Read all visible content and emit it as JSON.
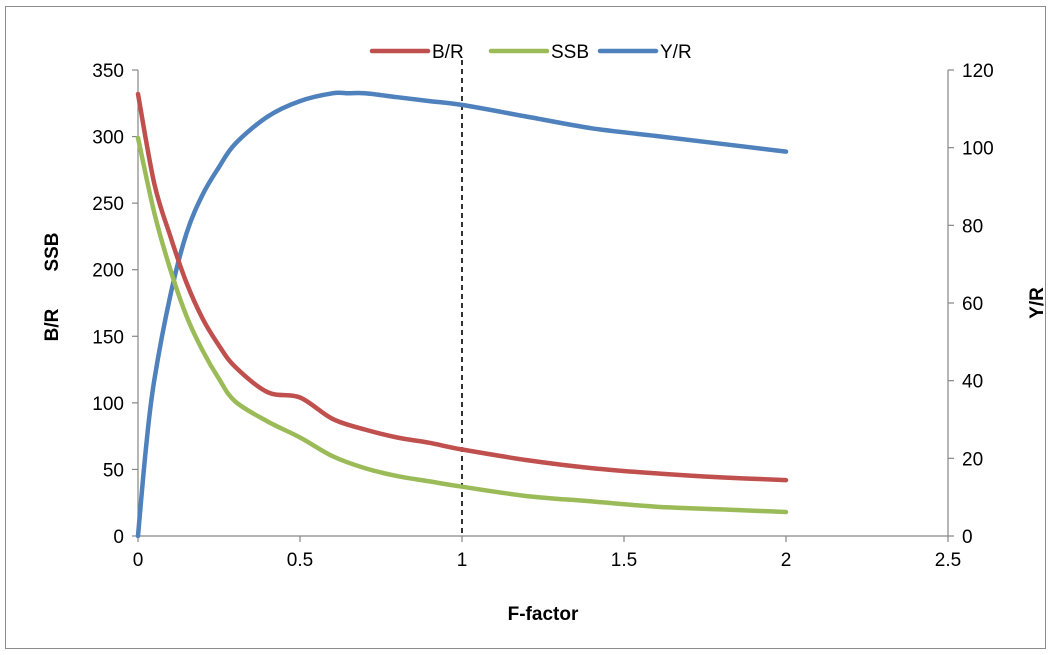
{
  "chart_data": {
    "type": "line",
    "title": "",
    "xlabel": "F-factor",
    "ylabel_left": [
      "B/R",
      "SSB"
    ],
    "ylabel_right": "Y/R",
    "xlim": [
      0,
      2.5
    ],
    "xticks": [
      "0",
      "0.5",
      "1",
      "1.5",
      "2",
      "2.5"
    ],
    "ylim_left": [
      0,
      350
    ],
    "yticks_left": [
      "0",
      "50",
      "100",
      "150",
      "200",
      "250",
      "300",
      "350"
    ],
    "ylim_right": [
      0,
      120
    ],
    "yticks_right": [
      "0",
      "20",
      "40",
      "60",
      "80",
      "100",
      "120"
    ],
    "grid": false,
    "legend_position": "top",
    "reference_line": {
      "x": 1,
      "style": "dashed"
    },
    "series": [
      {
        "name": "B/R",
        "axis": "left",
        "color": "#c0504d",
        "x": [
          0,
          0.05,
          0.1,
          0.15,
          0.2,
          0.25,
          0.3,
          0.4,
          0.5,
          0.6,
          0.7,
          0.8,
          0.9,
          1.0,
          1.2,
          1.4,
          1.6,
          1.8,
          2.0
        ],
        "y": [
          332,
          265,
          225,
          190,
          163,
          143,
          127,
          108,
          104,
          88,
          80,
          74,
          70,
          65,
          57,
          51,
          47,
          44,
          42
        ]
      },
      {
        "name": "SSB",
        "axis": "left",
        "color": "#9bbb59",
        "x": [
          0,
          0.05,
          0.1,
          0.15,
          0.2,
          0.25,
          0.3,
          0.4,
          0.5,
          0.6,
          0.7,
          0.8,
          0.9,
          1.0,
          1.2,
          1.4,
          1.6,
          1.8,
          2.0
        ],
        "y": [
          299,
          243,
          200,
          165,
          139,
          118,
          101,
          86,
          74,
          60,
          51,
          45,
          41,
          37,
          30,
          26,
          22,
          20,
          18
        ]
      },
      {
        "name": "Y/R",
        "axis": "right",
        "color": "#4f81bd",
        "x": [
          0,
          0.025,
          0.05,
          0.1,
          0.15,
          0.2,
          0.25,
          0.3,
          0.4,
          0.5,
          0.6,
          0.65,
          0.7,
          0.8,
          0.9,
          1.0,
          1.2,
          1.4,
          1.6,
          1.8,
          2.0
        ],
        "y": [
          0,
          23,
          40,
          62,
          78,
          88,
          95,
          101,
          108,
          112,
          114,
          114,
          114,
          113,
          112,
          111,
          108,
          105,
          103,
          101,
          99
        ]
      }
    ]
  }
}
